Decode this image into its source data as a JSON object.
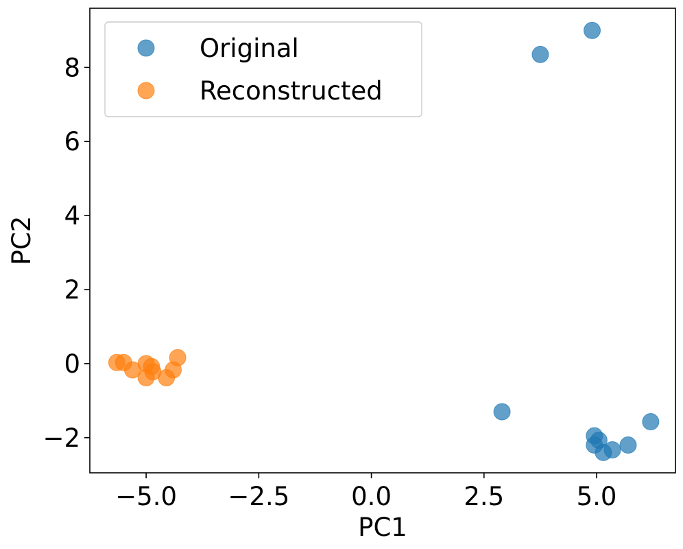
{
  "chart_data": {
    "type": "scatter",
    "title": "",
    "xlabel": "PC1",
    "ylabel": "PC2",
    "xlim": [
      -6.25,
      6.75
    ],
    "ylim": [
      -2.95,
      9.6
    ],
    "xticks": [
      -5.0,
      -2.5,
      0.0,
      2.5,
      5.0
    ],
    "xtick_labels": [
      "−5.0",
      "−2.5",
      "0.0",
      "2.5",
      "5.0"
    ],
    "yticks": [
      -2,
      0,
      2,
      4,
      6,
      8
    ],
    "ytick_labels": [
      "−2",
      "0",
      "2",
      "4",
      "6",
      "8"
    ],
    "grid": false,
    "legend_position": "top-left",
    "series": [
      {
        "name": "Original",
        "color": "#1f77b4",
        "points": [
          [
            4.9,
            9.0
          ],
          [
            3.75,
            8.35
          ],
          [
            2.9,
            -1.3
          ],
          [
            6.2,
            -1.57
          ],
          [
            4.95,
            -1.95
          ],
          [
            5.05,
            -2.07
          ],
          [
            4.95,
            -2.2
          ],
          [
            5.7,
            -2.2
          ],
          [
            5.35,
            -2.33
          ],
          [
            5.15,
            -2.4
          ]
        ]
      },
      {
        "name": "Reconstructed",
        "color": "#ff7f0e",
        "points": [
          [
            -5.65,
            0.03
          ],
          [
            -5.5,
            0.03
          ],
          [
            -5.3,
            -0.17
          ],
          [
            -5.0,
            0.0
          ],
          [
            -4.88,
            -0.08
          ],
          [
            -5.0,
            -0.38
          ],
          [
            -4.85,
            -0.22
          ],
          [
            -4.55,
            -0.38
          ],
          [
            -4.4,
            -0.17
          ],
          [
            -4.3,
            0.16
          ]
        ]
      }
    ]
  }
}
